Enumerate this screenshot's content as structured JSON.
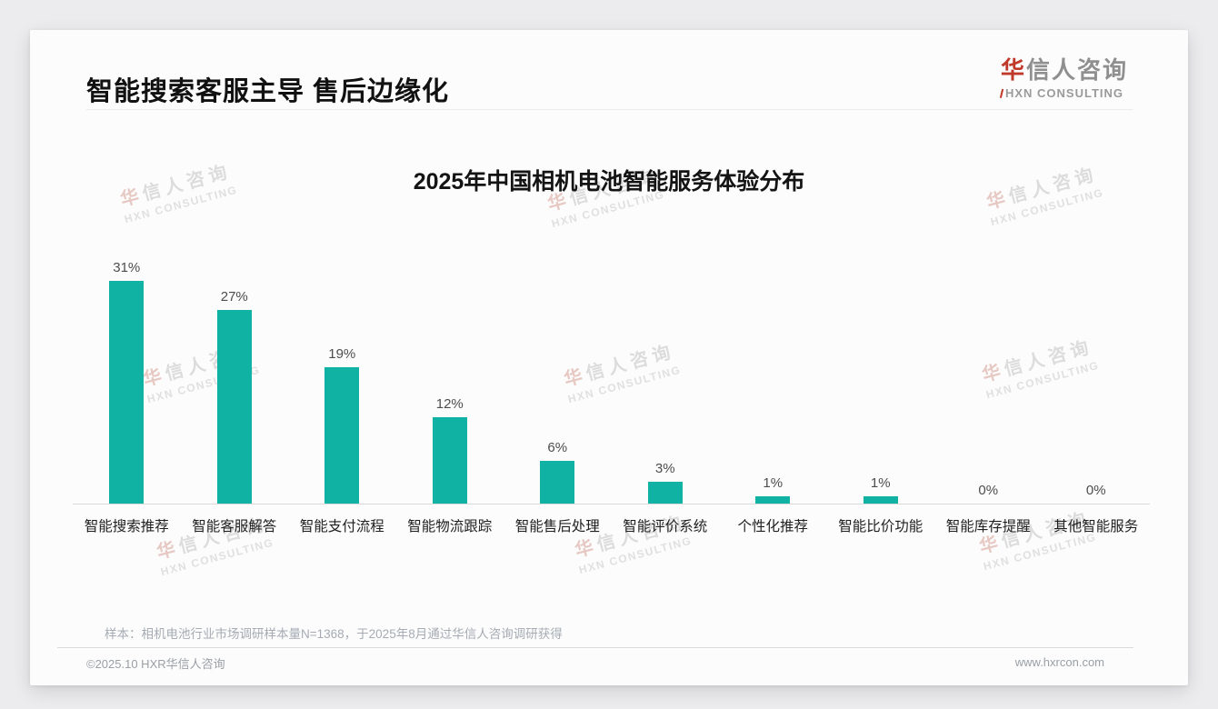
{
  "page": {
    "title": "智能搜索客服主导 售后边缘化",
    "note": "样本：相机电池行业市场调研样本量N=1368，于2025年8月通过华信人咨询调研获得",
    "footer_left": "©2025.10 HXR华信人咨询",
    "footer_right": "www.hxrcon.com"
  },
  "logo": {
    "zh_first": "华",
    "zh_rest": "信人咨询",
    "en": "HXN CONSULTING"
  },
  "watermark": {
    "line1_first": "华",
    "line1_rest": "信人咨询",
    "line2": "HXN CONSULTING"
  },
  "chart_data": {
    "type": "bar",
    "title": "2025年中国相机电池智能服务体验分布",
    "categories": [
      "智能搜索推荐",
      "智能客服解答",
      "智能支付流程",
      "智能物流跟踪",
      "智能售后处理",
      "智能评价系统",
      "个性化推荐",
      "智能比价功能",
      "智能库存提醒",
      "其他智能服务"
    ],
    "values": [
      31,
      27,
      19,
      12,
      6,
      3,
      1,
      1,
      0,
      0
    ],
    "value_suffix": "%",
    "xlabel": "",
    "ylabel": "",
    "ylim": [
      0,
      35
    ],
    "grid": false,
    "legend": false,
    "bar_color": "#10b2a4"
  },
  "colors": {
    "accent": "#10b2a4",
    "logo_red": "#c0392b",
    "title_text": "#111111",
    "watermark_gray": "#dddcdc",
    "watermark_red": "#e7c9c4",
    "axis_line": "#d9d9d9"
  }
}
